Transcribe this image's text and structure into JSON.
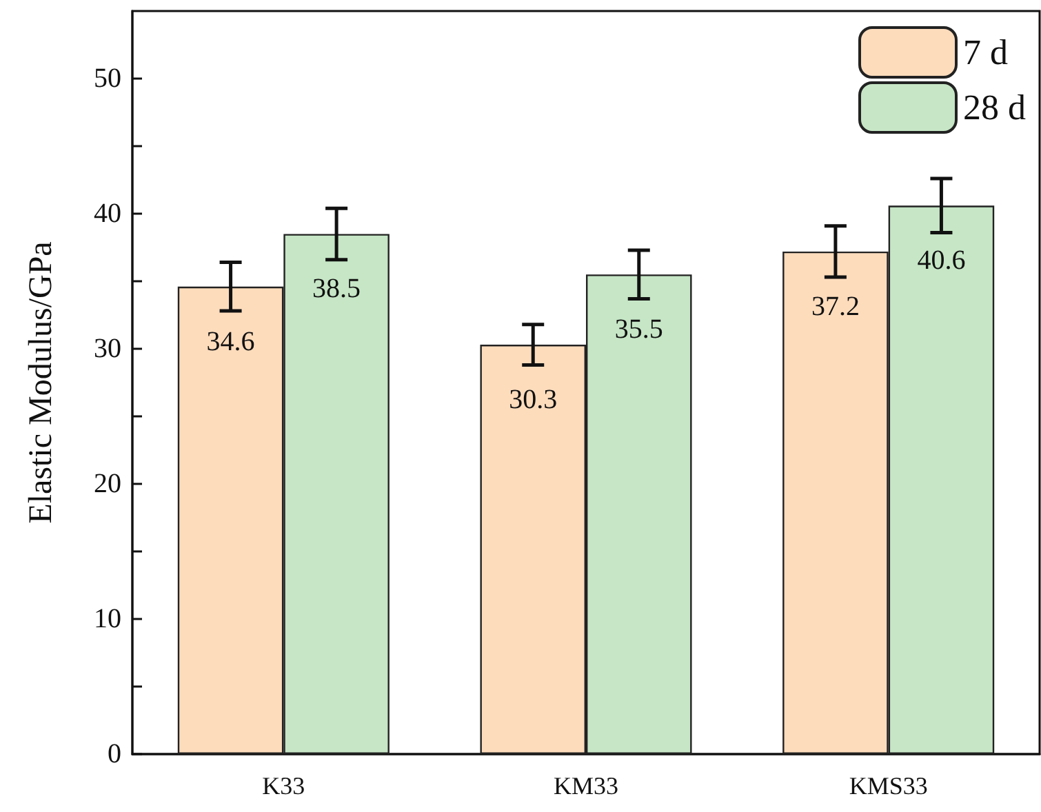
{
  "chart_data": {
    "type": "bar",
    "ylabel": "Elastic Modulus/GPa",
    "categories": [
      "K33",
      "KM33",
      "KMS33"
    ],
    "series": [
      {
        "name": "7 d",
        "color": "#fddcbc",
        "values": [
          34.6,
          30.3,
          37.2
        ],
        "errors": [
          1.8,
          1.5,
          1.9
        ]
      },
      {
        "name": "28 d",
        "color": "#c6e6c6",
        "values": [
          38.5,
          35.5,
          40.6
        ],
        "errors": [
          1.9,
          1.8,
          2.0
        ]
      }
    ],
    "ylim": [
      0,
      55
    ],
    "yticks": [
      0,
      {
        "value": 5,
        "label": null
      },
      10,
      {
        "value": 15,
        "label": null
      },
      20,
      {
        "value": 25,
        "label": null
      },
      30,
      {
        "value": 35,
        "label": null
      },
      40,
      {
        "value": 45,
        "label": null
      },
      50
    ],
    "data_labels": true,
    "legend": "top right",
    "grid": false
  }
}
